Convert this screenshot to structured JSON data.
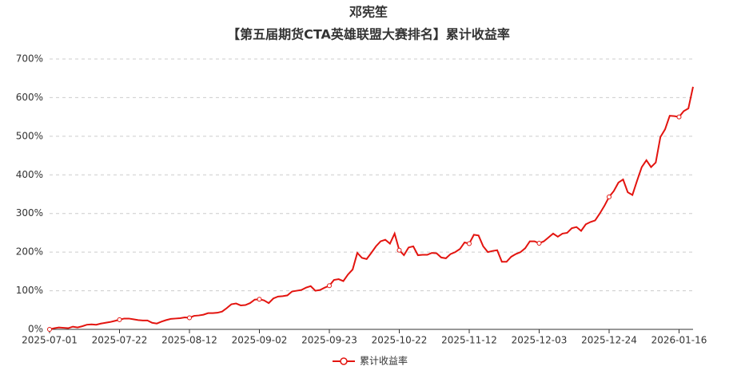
{
  "chart_data": {
    "type": "line",
    "title": "邓宪笙",
    "subtitle": "【第五届期货CTA英雄联盟大赛排名】累计收益率",
    "categories": [
      "2025-07-01",
      null,
      null,
      null,
      null,
      null,
      null,
      null,
      null,
      null,
      null,
      null,
      null,
      null,
      null,
      "2025-07-22",
      null,
      null,
      null,
      null,
      null,
      null,
      null,
      null,
      null,
      null,
      null,
      null,
      null,
      null,
      "2025-08-12",
      null,
      null,
      null,
      null,
      null,
      null,
      null,
      null,
      null,
      null,
      null,
      null,
      null,
      null,
      "2025-09-02",
      null,
      null,
      null,
      null,
      null,
      null,
      null,
      null,
      null,
      null,
      null,
      null,
      null,
      null,
      "2025-09-23",
      null,
      null,
      null,
      null,
      null,
      null,
      null,
      null,
      null,
      null,
      null,
      null,
      null,
      null,
      "2025-10-22",
      null,
      null,
      null,
      null,
      null,
      null,
      null,
      null,
      null,
      null,
      null,
      null,
      null,
      null,
      "2025-11-12",
      null,
      null,
      null,
      null,
      null,
      null,
      null,
      null,
      null,
      null,
      null,
      null,
      null,
      null,
      "2025-12-03",
      null,
      null,
      null,
      null,
      null,
      null,
      null,
      null,
      null,
      null,
      null,
      null,
      null,
      null,
      "2025-12-24",
      null,
      null,
      null,
      null,
      null,
      null,
      null,
      null,
      null,
      null,
      null,
      null,
      null,
      null,
      "2026-01-16",
      null,
      null,
      null
    ],
    "series": [
      {
        "name": "累计收益率",
        "color": "#e3140f",
        "values": [
          0,
          3,
          5,
          4,
          3,
          7,
          5,
          8,
          12,
          13,
          12,
          15,
          17,
          19,
          22,
          25,
          28,
          28,
          26,
          24,
          23,
          23,
          17,
          15,
          20,
          24,
          27,
          28,
          29,
          31,
          30,
          35,
          36,
          38,
          42,
          42,
          43,
          46,
          55,
          65,
          67,
          62,
          63,
          68,
          77,
          78,
          75,
          68,
          80,
          85,
          86,
          88,
          98,
          100,
          102,
          108,
          112,
          100,
          102,
          108,
          113,
          128,
          130,
          125,
          142,
          155,
          198,
          185,
          182,
          198,
          215,
          228,
          232,
          222,
          248,
          205,
          192,
          212,
          215,
          192,
          193,
          193,
          198,
          197,
          186,
          184,
          195,
          200,
          208,
          225,
          222,
          245,
          243,
          215,
          200,
          203,
          205,
          175,
          175,
          188,
          195,
          200,
          210,
          228,
          228,
          223,
          228,
          238,
          248,
          240,
          248,
          250,
          262,
          265,
          255,
          272,
          278,
          282,
          300,
          320,
          343,
          358,
          380,
          388,
          355,
          348,
          385,
          420,
          438,
          420,
          432,
          498,
          518,
          553,
          552,
          550,
          565,
          572,
          628
        ]
      }
    ],
    "ylim": [
      0,
      700
    ],
    "yticks": [
      {
        "value": 0,
        "label": "0%"
      },
      {
        "value": 100,
        "label": "100%"
      },
      {
        "value": 200,
        "label": "200%"
      },
      {
        "value": 300,
        "label": "300%"
      },
      {
        "value": 400,
        "label": "400%"
      },
      {
        "value": 500,
        "label": "500%"
      },
      {
        "value": 600,
        "label": "600%"
      },
      {
        "value": 700,
        "label": "700%"
      }
    ],
    "grid": true,
    "legend": "bottom"
  }
}
